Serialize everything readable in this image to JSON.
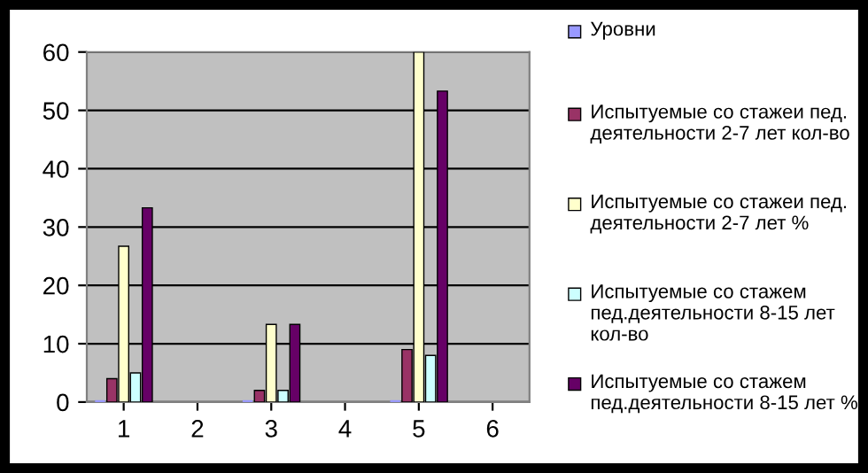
{
  "chart_data": {
    "type": "bar",
    "categories": [
      "1",
      "2",
      "3",
      "4",
      "5",
      "6"
    ],
    "series": [
      {
        "name": "Уровни",
        "color": "#9999ff",
        "values": [
          0,
          null,
          0,
          null,
          0,
          null
        ]
      },
      {
        "name": "Испытуемые со стажеи пед. деятельности 2-7 лет кол-во",
        "color": "#993366",
        "values": [
          4,
          null,
          2,
          null,
          9,
          null
        ]
      },
      {
        "name": "Испытуемые со стажеи пед. деятельности 2-7 лет %",
        "color": "#ffffcc",
        "values": [
          26.7,
          null,
          13.3,
          null,
          60,
          null
        ]
      },
      {
        "name": "Испытуемые со стажем пед.деятельности 8-15 лет кол-во",
        "color": "#ccffff",
        "values": [
          5,
          null,
          2,
          null,
          8,
          null
        ]
      },
      {
        "name": "Испытуемые со стажем пед.деятельности 8-15 лет %",
        "color": "#660066",
        "values": [
          33.3,
          null,
          13.3,
          null,
          53.3,
          null
        ]
      }
    ],
    "ylim": [
      0,
      60
    ],
    "yticks": [
      0,
      10,
      20,
      30,
      40,
      50,
      60
    ],
    "grid": "y",
    "legend": "right"
  }
}
